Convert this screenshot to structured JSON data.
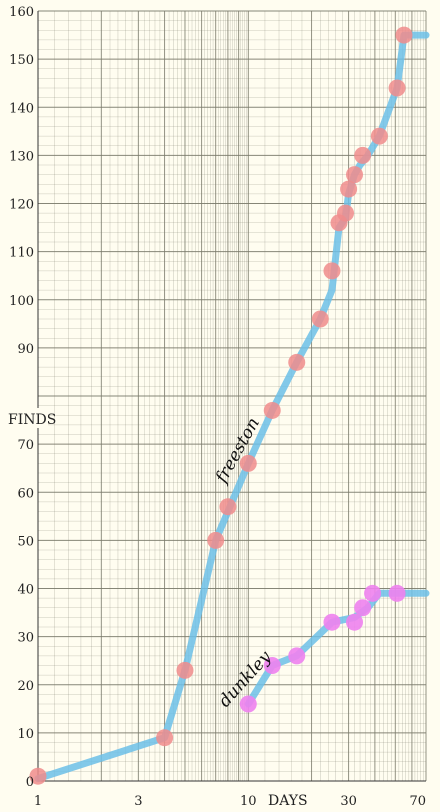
{
  "chart_data": {
    "type": "line",
    "xscale": "log",
    "xlim": [
      1,
      70
    ],
    "ylim": [
      0,
      160
    ],
    "xlabel": "DAYS",
    "ylabel": "FINDS",
    "xticks": [
      1,
      3,
      10,
      30,
      70
    ],
    "yticks": [
      0,
      10,
      20,
      30,
      40,
      50,
      60,
      70,
      80,
      90,
      100,
      110,
      120,
      130,
      140,
      150,
      160
    ],
    "yticks_labeled": [
      0,
      10,
      20,
      30,
      40,
      50,
      60,
      70,
      90,
      100,
      110,
      120,
      130,
      140,
      150,
      160
    ],
    "grid": true,
    "series": [
      {
        "name": "freeston",
        "line_x": [
          1,
          4,
          5,
          7,
          10,
          13,
          17,
          22,
          25,
          27,
          29,
          30,
          32,
          34,
          37,
          42,
          51,
          55,
          60,
          70
        ],
        "line_y": [
          0.5,
          9,
          23,
          50,
          66,
          77,
          87,
          96,
          102,
          115,
          117,
          122,
          126,
          128,
          130,
          134,
          144,
          155,
          155,
          155
        ],
        "marker_x": [
          1,
          4,
          5,
          7,
          8,
          10,
          13,
          17,
          22,
          25,
          27,
          29,
          30,
          32,
          35,
          42,
          51,
          55
        ],
        "marker_y": [
          1,
          9,
          23,
          50,
          57,
          66,
          77,
          87,
          96,
          106,
          116,
          118,
          123,
          126,
          130,
          134,
          144,
          155
        ]
      },
      {
        "name": "dunkley",
        "line_x": [
          10,
          13,
          17,
          25,
          32,
          37,
          42,
          51,
          70
        ],
        "line_y": [
          16,
          24,
          26,
          33,
          34,
          36,
          39,
          39,
          39
        ],
        "marker_x": [
          10,
          13,
          17,
          25,
          32,
          35,
          39,
          51
        ],
        "marker_y": [
          16,
          24,
          26,
          33,
          33,
          36,
          39,
          39
        ]
      }
    ]
  },
  "style": {
    "background": "#fffdf0",
    "grid_color": "#7a7a6a",
    "line_color": "#6cbfe8",
    "series_markers": [
      "#f08c8c",
      "#ee82ee"
    ]
  }
}
